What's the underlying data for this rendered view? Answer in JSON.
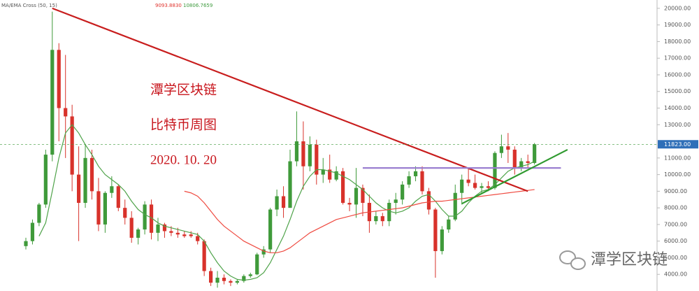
{
  "chart_data": {
    "type": "candlestick",
    "indicator": {
      "name": "MA/EMA Cross (50, 15)",
      "values": [
        "9093.8830",
        "10806.7659"
      ],
      "colors": [
        "#e0322c",
        "#3d9a3d"
      ]
    },
    "annotations": [
      "潭学区块链",
      "比特币周图",
      "2020. 10. 20"
    ],
    "watermark": "潭学区块链",
    "up_color": "#3f9a3a",
    "down_color": "#d8322b",
    "ylim": [
      3000,
      20500
    ],
    "yticks": [
      {
        "value": 4000,
        "label": "4000.00"
      },
      {
        "value": 5000,
        "label": "5000.00"
      },
      {
        "value": 6000,
        "label": "6000.00"
      },
      {
        "value": 7000,
        "label": "7000.00"
      },
      {
        "value": 8000,
        "label": "8000.00"
      },
      {
        "value": 9000,
        "label": "9000.00"
      },
      {
        "value": 10000,
        "label": "10000.00"
      },
      {
        "value": 11000,
        "label": "11000.00"
      },
      {
        "value": 13000,
        "label": "13000.00"
      },
      {
        "value": 14000,
        "label": "14000.00"
      },
      {
        "value": 15000,
        "label": "15000.00"
      },
      {
        "value": 16000,
        "label": "16000.00"
      },
      {
        "value": 17000,
        "label": "17000.00"
      },
      {
        "value": 18000,
        "label": "18000.00"
      },
      {
        "value": 19000,
        "label": "19000.00"
      },
      {
        "value": 20000,
        "label": "20000.00"
      }
    ],
    "last_price": {
      "value": 11823,
      "label": "11823.00"
    },
    "ohlc": [
      [
        5700,
        6200,
        5500,
        6000
      ],
      [
        6000,
        7300,
        5800,
        7100
      ],
      [
        7100,
        8300,
        6900,
        8200
      ],
      [
        8200,
        11500,
        8000,
        11200
      ],
      [
        11200,
        19800,
        10800,
        17500
      ],
      [
        17500,
        17900,
        12000,
        14000
      ],
      [
        14000,
        17200,
        11000,
        13500
      ],
      [
        13500,
        14200,
        9000,
        10000
      ],
      [
        10000,
        11700,
        6000,
        8300
      ],
      [
        8300,
        11800,
        8000,
        11000
      ],
      [
        11000,
        11500,
        8500,
        9000
      ],
      [
        9000,
        9800,
        6600,
        7000
      ],
      [
        7000,
        9000,
        6500,
        8900
      ],
      [
        8900,
        9900,
        8600,
        9300
      ],
      [
        9300,
        9400,
        7800,
        8000
      ],
      [
        8000,
        8500,
        7000,
        7400
      ],
      [
        7400,
        7800,
        5900,
        6200
      ],
      [
        6200,
        6800,
        5800,
        6700
      ],
      [
        6700,
        8400,
        6400,
        8200
      ],
      [
        8200,
        8500,
        6100,
        6500
      ],
      [
        6500,
        7400,
        6000,
        7000
      ],
      [
        7000,
        7100,
        6200,
        6600
      ],
      [
        6600,
        6900,
        6300,
        6500
      ],
      [
        6500,
        6800,
        6200,
        6400
      ],
      [
        6400,
        6600,
        6200,
        6300
      ],
      [
        6400,
        6600,
        6200,
        6300
      ],
      [
        6300,
        6500,
        5800,
        6000
      ],
      [
        6000,
        6100,
        3900,
        4200
      ],
      [
        4200,
        4400,
        3300,
        3500
      ],
      [
        3500,
        4200,
        3200,
        3800
      ],
      [
        3800,
        4000,
        3400,
        3600
      ],
      [
        3600,
        3700,
        3300,
        3500
      ],
      [
        3500,
        3700,
        3400,
        3600
      ],
      [
        3600,
        4000,
        3500,
        3900
      ],
      [
        3900,
        4100,
        3800,
        4000
      ],
      [
        4000,
        5300,
        3950,
        5200
      ],
      [
        5200,
        5700,
        5000,
        5500
      ],
      [
        5500,
        8000,
        5300,
        7900
      ],
      [
        7900,
        9100,
        7500,
        8700
      ],
      [
        8700,
        9300,
        7400,
        8000
      ],
      [
        8000,
        11500,
        8000,
        10800
      ],
      [
        10800,
        13800,
        10500,
        12000
      ],
      [
        12000,
        13200,
        9100,
        10500
      ],
      [
        10500,
        12300,
        10200,
        11800
      ],
      [
        11800,
        12100,
        9400,
        10000
      ],
      [
        10000,
        11000,
        9500,
        10300
      ],
      [
        10300,
        11200,
        9500,
        9700
      ],
      [
        9700,
        10500,
        9600,
        10200
      ],
      [
        10200,
        10400,
        8200,
        8300
      ],
      [
        8300,
        8600,
        7800,
        8200
      ],
      [
        8200,
        10400,
        7400,
        9200
      ],
      [
        9200,
        9400,
        7500,
        8300
      ],
      [
        8300,
        8800,
        6500,
        7200
      ],
      [
        7200,
        7800,
        7000,
        7500
      ],
      [
        7500,
        7700,
        6900,
        7200
      ],
      [
        7200,
        8500,
        6900,
        8300
      ],
      [
        8300,
        8900,
        7600,
        8500
      ],
      [
        8500,
        9600,
        8200,
        9400
      ],
      [
        9400,
        10200,
        9200,
        9900
      ],
      [
        9900,
        10500,
        9600,
        10200
      ],
      [
        10200,
        10500,
        8800,
        9000
      ],
      [
        9000,
        9200,
        7600,
        7900
      ],
      [
        7900,
        8000,
        3800,
        5400
      ],
      [
        5400,
        6900,
        5200,
        6700
      ],
      [
        6700,
        7500,
        6500,
        7300
      ],
      [
        7300,
        9400,
        7200,
        8900
      ],
      [
        8900,
        10000,
        8200,
        9700
      ],
      [
        9700,
        10400,
        9300,
        9500
      ],
      [
        9500,
        10000,
        9100,
        9200
      ],
      [
        9200,
        9500,
        8900,
        9300
      ],
      [
        9300,
        9600,
        9000,
        9200
      ],
      [
        9200,
        11400,
        9100,
        11300
      ],
      [
        11300,
        12400,
        11000,
        11700
      ],
      [
        11700,
        12500,
        10700,
        11500
      ],
      [
        11500,
        11700,
        10000,
        10400
      ],
      [
        10400,
        11000,
        10200,
        10800
      ],
      [
        10800,
        11200,
        10400,
        10700
      ],
      [
        10700,
        11900,
        10600,
        11823
      ]
    ],
    "overlays": [
      {
        "color": "#4fa34a",
        "values": [
          null,
          null,
          6300,
          7100,
          9000,
          11000,
          12500,
          13000,
          12500,
          11800,
          11200,
          10500,
          10000,
          9700,
          9400,
          9000,
          8400,
          7900,
          7600,
          7400,
          7100,
          6900,
          6800,
          6700,
          6600,
          6500,
          6400,
          6000,
          5300,
          4700,
          4200,
          3900,
          3700,
          3650,
          3700,
          3800,
          4100,
          4700,
          5500,
          6300,
          7300,
          8400,
          9300,
          9900,
          10300,
          10300,
          10200,
          10100,
          9900,
          9700,
          9400,
          9100,
          8700,
          8300,
          8000,
          7800,
          7700,
          7800,
          8000,
          8400,
          8700,
          8800,
          8400,
          7900,
          7500,
          7500,
          7800,
          8300,
          8700,
          9000,
          9100,
          9400,
          9800,
          10200,
          10400,
          10500,
          10600,
          10800
        ]
      },
      {
        "color": "#ef4a40",
        "values": [
          null,
          null,
          null,
          null,
          null,
          null,
          null,
          null,
          null,
          null,
          null,
          null,
          null,
          null,
          null,
          null,
          null,
          null,
          null,
          null,
          null,
          null,
          null,
          null,
          9000,
          8900,
          8700,
          8300,
          7800,
          7300,
          6900,
          6600,
          6300,
          6000,
          5800,
          5600,
          5400,
          5300,
          5300,
          5400,
          5600,
          5900,
          6200,
          6500,
          6700,
          6900,
          7100,
          7300,
          7400,
          7500,
          7600,
          7700,
          7750,
          7800,
          7850,
          7900,
          7950,
          8000,
          8100,
          8200,
          8300,
          8350,
          8400,
          8400,
          8450,
          8500,
          8550,
          8600,
          8650,
          8700,
          8750,
          8800,
          8850,
          8900,
          8950,
          9000,
          9050,
          9100
        ]
      }
    ],
    "drawings": [
      {
        "color": "#c81d1d",
        "points": [
          [
            4,
            20000
          ],
          [
            76,
            9000
          ]
        ]
      },
      {
        "color": "#9a7fd0",
        "points": [
          [
            51,
            10400
          ],
          [
            81,
            10400
          ]
        ]
      },
      {
        "color": "#2f9a2f",
        "points": [
          [
            66,
            8250
          ],
          [
            82,
            11500
          ]
        ]
      }
    ]
  }
}
